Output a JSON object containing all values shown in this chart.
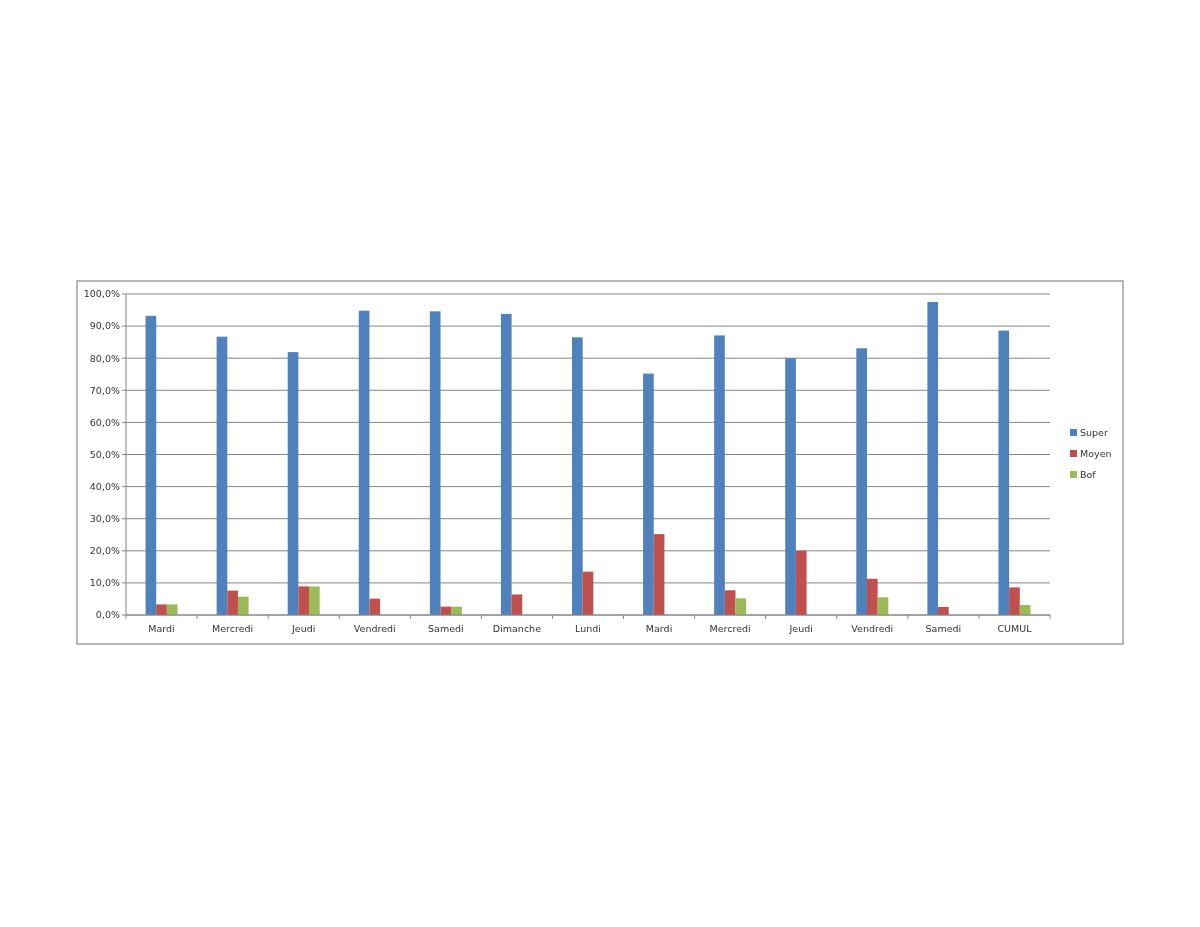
{
  "chart_data": {
    "type": "bar",
    "categories": [
      "Mardi",
      "Mercredi",
      "Jeudi",
      "Vendredi",
      "Samedi",
      "Dimanche",
      "Lundi",
      "Mardi",
      "Mercredi",
      "Jeudi",
      "Vendredi",
      "Samedi",
      "CUMUL"
    ],
    "series": [
      {
        "name": "Super",
        "color": "#4f81bd",
        "values": [
          93.2,
          86.7,
          81.9,
          94.8,
          94.6,
          93.8,
          86.5,
          75.2,
          87.1,
          80.0,
          83.1,
          97.5,
          88.6
        ]
      },
      {
        "name": "Moyen",
        "color": "#c0504d",
        "values": [
          3.3,
          7.6,
          8.9,
          5.1,
          2.6,
          6.4,
          13.5,
          25.2,
          7.7,
          20.0,
          11.3,
          2.5,
          8.6
        ]
      },
      {
        "name": "Bof",
        "color": "#9bbb59",
        "values": [
          3.3,
          5.7,
          8.9,
          null,
          2.6,
          null,
          null,
          null,
          5.2,
          null,
          5.5,
          null,
          3.1
        ]
      }
    ],
    "ylim": [
      0,
      100
    ],
    "yticks": [
      {
        "value": 0,
        "label": "0,0%"
      },
      {
        "value": 10,
        "label": "10,0%"
      },
      {
        "value": 20,
        "label": "20,0%"
      },
      {
        "value": 30,
        "label": "30,0%"
      },
      {
        "value": 40,
        "label": "40,0%"
      },
      {
        "value": 50,
        "label": "50,0%"
      },
      {
        "value": 60,
        "label": "60,0%"
      },
      {
        "value": 70,
        "label": "70,0%"
      },
      {
        "value": 80,
        "label": "80,0%"
      },
      {
        "value": 90,
        "label": "90,0%"
      },
      {
        "value": 100,
        "label": "100,0%"
      }
    ],
    "grid": "y",
    "legend": "right"
  }
}
